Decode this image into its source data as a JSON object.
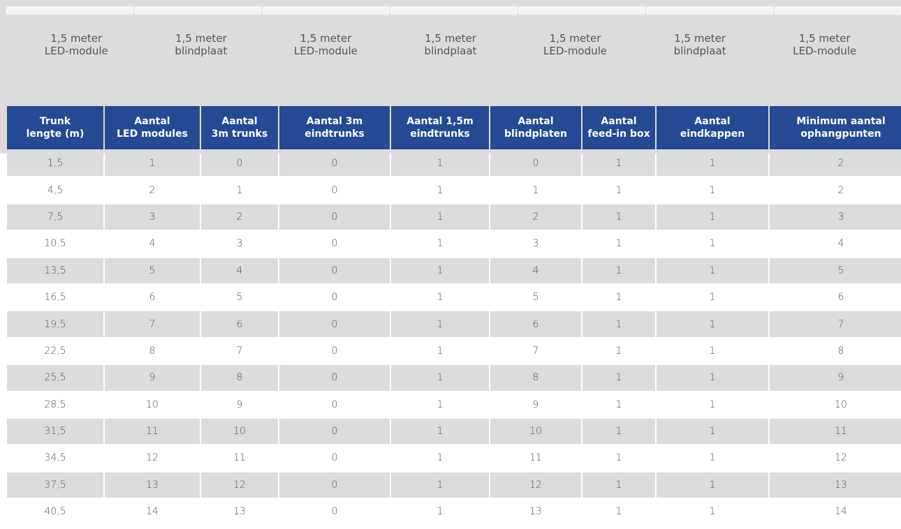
{
  "modules": [
    [
      "1,5 meter",
      "LED-module"
    ],
    [
      "1,5 meter",
      "blindplaat"
    ],
    [
      "1,5 meter",
      "LED-module"
    ],
    [
      "1,5 meter",
      "blindplaat"
    ],
    [
      "1,5 meter",
      "LED-module"
    ],
    [
      "1,5 meter",
      "blindplaat"
    ],
    [
      "1,5 meter",
      "LED-module"
    ]
  ],
  "table": {
    "header": [
      [
        "Trunk",
        "lengte (m)"
      ],
      [
        "Aantal",
        "LED modules"
      ],
      [
        "Aantal",
        "3m trunks"
      ],
      [
        "Aantal 3m",
        "eindtrunks"
      ],
      [
        "Aantal 1,5m",
        "eindtrunks"
      ],
      [
        "Aantal",
        "blindplaten"
      ],
      [
        "Aantal",
        "feed-in box"
      ],
      [
        "Aantal",
        "eindkappen"
      ],
      [
        "Minimum aantal",
        "ophangpunten"
      ]
    ],
    "rows": [
      [
        "1,5",
        "1",
        "0",
        "0",
        "1",
        "0",
        "1",
        "1",
        "2"
      ],
      [
        "4,5",
        "2",
        "1",
        "0",
        "1",
        "1",
        "1",
        "1",
        "2"
      ],
      [
        "7,5",
        "3",
        "2",
        "0",
        "1",
        "2",
        "1",
        "1",
        "3"
      ],
      [
        "10,5",
        "4",
        "3",
        "0",
        "1",
        "3",
        "1",
        "1",
        "4"
      ],
      [
        "13,5",
        "5",
        "4",
        "0",
        "1",
        "4",
        "1",
        "1",
        "5"
      ],
      [
        "16,5",
        "6",
        "5",
        "0",
        "1",
        "5",
        "1",
        "1",
        "6"
      ],
      [
        "19,5",
        "7",
        "6",
        "0",
        "1",
        "6",
        "1",
        "1",
        "7"
      ],
      [
        "22,5",
        "8",
        "7",
        "0",
        "1",
        "7",
        "1",
        "1",
        "8"
      ],
      [
        "25,5",
        "9",
        "8",
        "0",
        "1",
        "8",
        "1",
        "1",
        "9"
      ],
      [
        "28,5",
        "10",
        "9",
        "0",
        "1",
        "9",
        "1",
        "1",
        "10"
      ],
      [
        "31,5",
        "11",
        "10",
        "0",
        "1",
        "10",
        "1",
        "1",
        "11"
      ],
      [
        "34,5",
        "12",
        "11",
        "0",
        "1",
        "11",
        "1",
        "1",
        "12"
      ],
      [
        "37,5",
        "13",
        "12",
        "0",
        "1",
        "12",
        "1",
        "1",
        "13"
      ],
      [
        "40,5",
        "14",
        "13",
        "0",
        "1",
        "13",
        "1",
        "1",
        "14"
      ]
    ]
  }
}
